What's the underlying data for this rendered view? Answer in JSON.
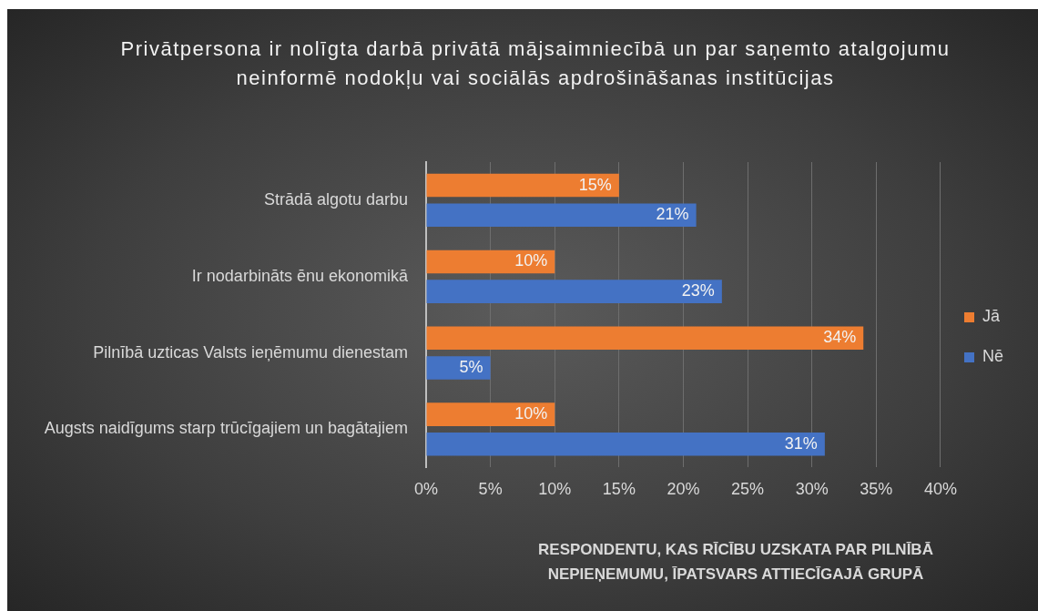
{
  "chart_data": {
    "type": "bar",
    "orientation": "horizontal",
    "title": "Privātpersona ir nolīgta darbā privātā mājsaimniecībā un par saņemto atalgojumu neinformē nodokļu vai sociālās apdrošināšanas institūcijas",
    "xlabel": "RESPONDENTU, KAS RĪCĪBU UZSKATA PAR PILNĪBĀ NEPIEŅEMUMU, ĪPATSVARS ATTIECĪGAJĀ GRUPĀ",
    "categories": [
      "Strādā algotu darbu",
      "Ir nodarbināts ēnu ekonomikā",
      "Pilnībā uzticas Valsts ieņēmumu dienestam",
      "Augsts naidīgums starp trūcīgajiem un bagātajiem"
    ],
    "series": [
      {
        "name": "Jā",
        "color": "#ed7d31",
        "values": [
          15,
          10,
          34,
          10
        ],
        "value_labels": [
          "15%",
          "10%",
          "34%",
          "10%"
        ]
      },
      {
        "name": "Nē",
        "color": "#4472c4",
        "values": [
          21,
          23,
          5,
          31
        ],
        "value_labels": [
          "21%",
          "23%",
          "5%",
          "31%"
        ]
      }
    ],
    "xlim": [
      0,
      40
    ],
    "xticks": [
      {
        "value": 0,
        "label": "0%"
      },
      {
        "value": 5,
        "label": "5%"
      },
      {
        "value": 10,
        "label": "10%"
      },
      {
        "value": 15,
        "label": "15%"
      },
      {
        "value": 20,
        "label": "20%"
      },
      {
        "value": 25,
        "label": "25%"
      },
      {
        "value": 30,
        "label": "30%"
      },
      {
        "value": 35,
        "label": "35%"
      },
      {
        "value": 40,
        "label": "40%"
      }
    ],
    "grid": "x",
    "legend": "right"
  }
}
